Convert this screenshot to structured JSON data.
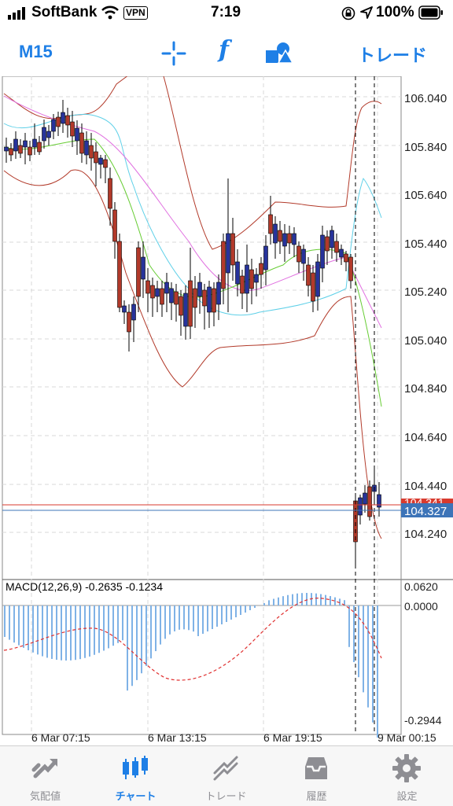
{
  "status": {
    "carrier": "SoftBank",
    "vpn": "VPN",
    "time": "7:19",
    "battery": "100%"
  },
  "toolbar": {
    "timeframe": "M15",
    "function_glyph": "f",
    "trade_label": "トレード"
  },
  "price_axis": {
    "labels": [
      "106.040",
      "105.840",
      "105.640",
      "105.440",
      "105.240",
      "105.040",
      "104.840",
      "104.640",
      "104.440",
      "104.240"
    ],
    "current_bid": "104.327",
    "current_ask": "104.341"
  },
  "macd": {
    "label": "MACD(12,26,9) -0.2635 -0.1234",
    "scale_top": "0.0620",
    "scale_zero": "0.0000",
    "scale_bottom": "-0.2944"
  },
  "time_axis": {
    "labels": [
      "6 Mar 07:15",
      "6 Mar 13:15",
      "6 Mar 19:15",
      "9 Mar 00:15"
    ]
  },
  "tabs": [
    {
      "label": "気配値",
      "icon": "quotes-icon",
      "active": false
    },
    {
      "label": "チャート",
      "icon": "chart-icon",
      "active": true
    },
    {
      "label": "トレード",
      "icon": "trade-icon",
      "active": false
    },
    {
      "label": "履歴",
      "icon": "history-icon",
      "active": false
    },
    {
      "label": "設定",
      "icon": "settings-icon",
      "active": false
    }
  ],
  "colors": {
    "accent": "#1e7fe6",
    "bull_candle": "#27339b",
    "bear_candle": "#b2392a",
    "bollinger": "#b23a2a",
    "ma_cyan": "#5fd0e8",
    "ma_magenta": "#e070e0",
    "ma_green": "#66cc33",
    "macd_hist": "#7fb2e6",
    "macd_signal": "#e03030",
    "bid_line": "#3d74b8",
    "ask_line": "#d83a2e"
  }
}
